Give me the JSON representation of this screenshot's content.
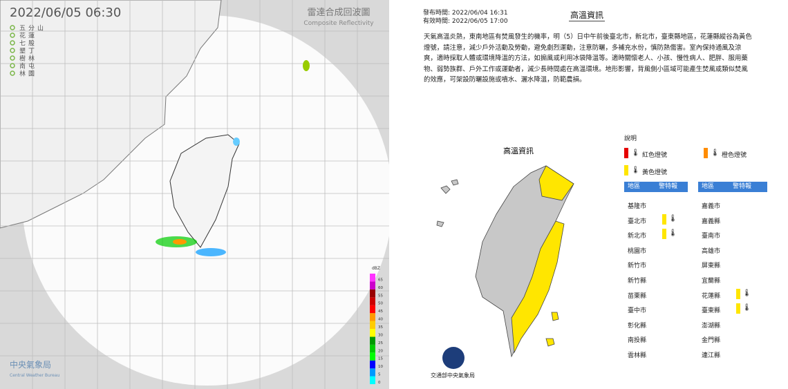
{
  "radar": {
    "timestamp": "2022/06/05  06:30",
    "title": "雷達合成回波圖",
    "subtitle": "Composite Reflectivity",
    "stations": [
      "五分山",
      "花蓮",
      "七股",
      "墾丁",
      "樹林",
      "南屯",
      "林園"
    ],
    "colorbar": {
      "unit": "dBZ",
      "ticks": [
        0,
        5,
        10,
        15,
        20,
        25,
        30,
        35,
        40,
        45,
        50,
        55,
        60,
        65
      ],
      "colors": [
        "#00ffff",
        "#0099ff",
        "#0000ff",
        "#00ff00",
        "#00cc00",
        "#009900",
        "#ffff00",
        "#ffcc00",
        "#ff9900",
        "#ff0000",
        "#cc0000",
        "#990000",
        "#cc00cc",
        "#ff33ff"
      ]
    },
    "agency": "中央氣象局",
    "agency_en": "Central Weather Bureau"
  },
  "heat": {
    "issued": "發布時間: 2022/06/04 16:31",
    "valid": "有效時間: 2022/06/05 17:00",
    "title": "高溫資訊",
    "body": "天氣高溫炎熱，東南地區有焚風發生的機率，明（5）日中午前後臺北市，新北市，臺東縣地區，花蓮縣縱谷為黃色燈號，請注意，減少戶外活動及勞動，避免劇烈運動，注意防曬，多補充水份，慎防熱傷害。室內保持通風及涼爽，適時採取人體或環境降溫的方法，如搧風或利用冰袋降溫等。適時關懷老人、小孩、慢性病人、肥胖、服用藥物、弱勢族群、戶外工作或運動者，減少長時間處在高溫環境。地形影響，背風側小區域可能產生焚風或類似焚風的效應，可架設防曬設施或噴水、灑水降溫，防範農損。",
    "map_label": "高溫資訊",
    "legend_title": "說明",
    "legend": [
      {
        "label": "紅色燈號",
        "color": "#e60000"
      },
      {
        "label": "橙色燈號",
        "color": "#ff8c00"
      },
      {
        "label": "黃色燈號",
        "color": "#ffe600"
      }
    ],
    "columns": [
      "地區",
      "警特報"
    ],
    "left_rows": [
      {
        "area": "基隆市",
        "warning_color": null
      },
      {
        "area": "臺北市",
        "warning_color": "#ffe600"
      },
      {
        "area": "新北市",
        "warning_color": "#ffe600"
      },
      {
        "area": "桃園市",
        "warning_color": null
      },
      {
        "area": "新竹市",
        "warning_color": null
      },
      {
        "area": "新竹縣",
        "warning_color": null
      },
      {
        "area": "苗栗縣",
        "warning_color": null
      },
      {
        "area": "臺中市",
        "warning_color": null
      },
      {
        "area": "彰化縣",
        "warning_color": null
      },
      {
        "area": "南投縣",
        "warning_color": null
      },
      {
        "area": "雲林縣",
        "warning_color": null
      }
    ],
    "right_rows": [
      {
        "area": "嘉義市",
        "warning_color": null
      },
      {
        "area": "嘉義縣",
        "warning_color": null
      },
      {
        "area": "臺南市",
        "warning_color": null
      },
      {
        "area": "高雄市",
        "warning_color": null
      },
      {
        "area": "屏東縣",
        "warning_color": null
      },
      {
        "area": "宜蘭縣",
        "warning_color": null
      },
      {
        "area": "花蓮縣",
        "warning_color": "#ffe600"
      },
      {
        "area": "臺東縣",
        "warning_color": "#ffe600"
      },
      {
        "area": "澎湖縣",
        "warning_color": null
      },
      {
        "area": "金門縣",
        "warning_color": null
      },
      {
        "area": "連江縣",
        "warning_color": null
      }
    ],
    "footer": "交通部中央氣象局"
  }
}
